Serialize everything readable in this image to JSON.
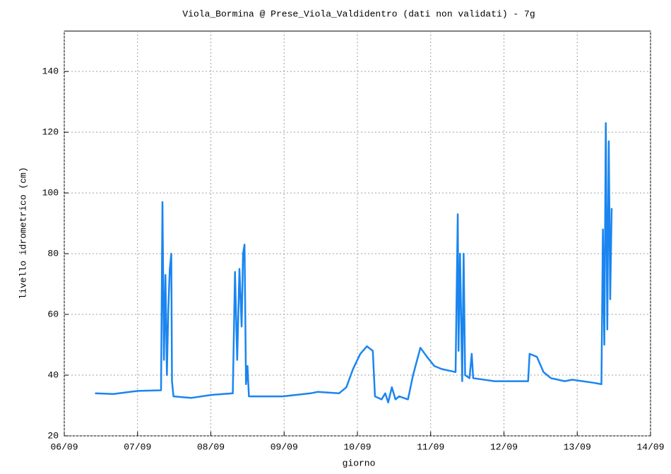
{
  "chart_data": {
    "type": "line",
    "title": "Viola_Bormina @ Prese_Viola_Valdidentro (dati non validati) - 7g",
    "x_label": "giorno",
    "y_label": "livello idrometrico (cm)",
    "x": [
      6.42,
      6.67,
      7.0,
      7.32,
      7.34,
      7.36,
      7.38,
      7.4,
      7.42,
      7.44,
      7.46,
      7.47,
      7.49,
      7.73,
      8.01,
      8.3,
      8.33,
      8.36,
      8.39,
      8.42,
      8.44,
      8.46,
      8.48,
      8.5,
      8.52,
      8.98,
      9.36,
      9.46,
      9.75,
      9.85,
      9.94,
      10.04,
      10.13,
      10.21,
      10.24,
      10.33,
      10.38,
      10.42,
      10.47,
      10.52,
      10.57,
      10.69,
      10.76,
      10.86,
      10.95,
      11.05,
      11.15,
      11.34,
      11.37,
      11.38,
      11.4,
      11.43,
      11.45,
      11.47,
      11.53,
      11.56,
      11.58,
      11.87,
      12.33,
      12.35,
      12.45,
      12.54,
      12.64,
      12.83,
      12.93,
      13.22,
      13.33,
      13.35,
      13.37,
      13.39,
      13.41,
      13.43,
      13.45,
      13.47
    ],
    "series": [
      {
        "name": "livello",
        "color": "#1a85f0",
        "values": [
          34,
          33.8,
          34.8,
          35,
          97,
          45,
          73,
          40,
          62,
          75,
          80,
          38,
          33,
          32.5,
          33.5,
          34,
          74,
          45,
          75,
          56,
          80,
          83,
          37,
          43,
          33,
          33,
          34,
          34.5,
          34,
          36,
          42,
          47,
          49.5,
          48,
          33,
          32,
          34,
          31,
          36,
          32,
          33,
          32,
          40,
          49,
          46,
          43,
          42,
          41,
          93,
          48,
          80,
          38,
          80,
          40,
          39,
          47,
          39,
          38,
          38,
          47,
          46,
          41,
          39,
          38,
          38.5,
          37.5,
          37,
          88,
          50,
          123,
          55,
          117,
          65,
          95
        ]
      }
    ],
    "xlim": [
      6,
      14
    ],
    "xticks": [
      {
        "value": 6,
        "label": "06/09"
      },
      {
        "value": 7,
        "label": "07/09"
      },
      {
        "value": 8,
        "label": "08/09"
      },
      {
        "value": 9,
        "label": "09/09"
      },
      {
        "value": 10,
        "label": "10/09"
      },
      {
        "value": 11,
        "label": "11/09"
      },
      {
        "value": 12,
        "label": "12/09"
      },
      {
        "value": 13,
        "label": "13/09"
      },
      {
        "value": 14,
        "label": "14/09"
      }
    ],
    "ylim": [
      20,
      153.3
    ],
    "yticks": [
      20,
      40,
      60,
      80,
      100,
      120,
      140
    ],
    "grid": true
  }
}
